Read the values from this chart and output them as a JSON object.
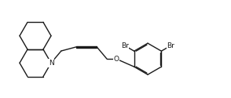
{
  "bg_color": "#ffffff",
  "line_color": "#1a1a1a",
  "line_width": 1.0,
  "text_color": "#1a1a1a",
  "font_size": 6.5,
  "figsize": [
    2.94,
    1.25
  ],
  "dpi": 100,
  "xlim": [
    0,
    29.4
  ],
  "ylim": [
    0,
    12.5
  ]
}
